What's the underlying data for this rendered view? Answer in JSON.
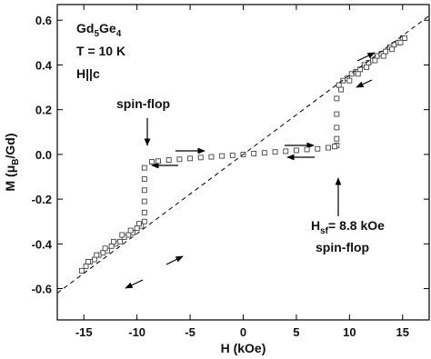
{
  "chart_data": {
    "type": "scatter",
    "xlabel": "H (kOe)",
    "ylabel": [
      "M (μ",
      "B",
      "/Gd)"
    ],
    "xlim": [
      -17.5,
      17.5
    ],
    "ylim": [
      -0.74,
      0.67
    ],
    "xticks": [
      -15,
      -10,
      -5,
      0,
      5,
      10,
      15
    ],
    "yticks": [
      0.6,
      0.4,
      0.2,
      {
        "value": 0,
        "label": "0.0"
      },
      -0.2,
      -0.4,
      -0.6
    ],
    "series": [
      {
        "type": "scatter",
        "color": "#444444",
        "marker": "square",
        "x": [
          9.0,
          9.4,
          9.8,
          10.2,
          10.6,
          11.0,
          11.4,
          11.8,
          12.2,
          12.6,
          13.0,
          13.4,
          13.8,
          14.2,
          14.6,
          15.0,
          15.2,
          14.8,
          14.0,
          13.2,
          12.4,
          11.6,
          10.8,
          10.0,
          9.2,
          8.8,
          8.8,
          8.8,
          8.8,
          8.8,
          8.6,
          8.0,
          7.0,
          6.0,
          5.0,
          4.0,
          3.0,
          2.0,
          1.0,
          0,
          -1,
          -2,
          -3,
          -4,
          -5,
          -6,
          -7,
          -8,
          -8.6,
          -9.3,
          -9.3,
          -9.3,
          -9.3,
          -9.3,
          -9.3,
          -9.6,
          -10.0,
          -10.4,
          -10.8,
          -11.2,
          -11.6,
          -12.0,
          -12.4,
          -12.8,
          -13.2,
          -13.6,
          -14.0,
          -14.4,
          -14.8,
          -15.2,
          -14.6,
          -13.8,
          -13.0,
          -12.2,
          -11.4,
          -10.6,
          -9.8
        ],
        "values": [
          0.31,
          0.33,
          0.34,
          0.36,
          0.37,
          0.38,
          0.4,
          0.41,
          0.42,
          0.44,
          0.45,
          0.46,
          0.48,
          0.49,
          0.5,
          0.52,
          0.52,
          0.5,
          0.47,
          0.44,
          0.42,
          0.39,
          0.36,
          0.33,
          0.29,
          0.25,
          0.18,
          0.12,
          0.07,
          0.04,
          0.035,
          0.03,
          0.025,
          0.022,
          0.018,
          0.014,
          0.011,
          0.007,
          0.004,
          0,
          -0.004,
          -0.007,
          -0.011,
          -0.014,
          -0.018,
          -0.022,
          -0.025,
          -0.03,
          -0.033,
          -0.06,
          -0.11,
          -0.16,
          -0.21,
          -0.26,
          -0.3,
          -0.32,
          -0.33,
          -0.35,
          -0.36,
          -0.37,
          -0.39,
          -0.4,
          -0.41,
          -0.43,
          -0.44,
          -0.45,
          -0.47,
          -0.48,
          -0.5,
          -0.52,
          -0.48,
          -0.45,
          -0.42,
          -0.39,
          -0.36,
          -0.34,
          -0.31
        ]
      },
      {
        "type": "line",
        "color": "#000000",
        "dashed": true,
        "x": [
          -17.5,
          17.5
        ],
        "values": [
          -0.62,
          0.62
        ]
      }
    ],
    "annotations": [
      {
        "text": [
          "Gd",
          "5",
          "Ge",
          "4"
        ]
      },
      {
        "text": [
          "T = 10 K"
        ]
      },
      {
        "text": [
          "H||c"
        ]
      },
      {
        "text": [
          "spin-flop"
        ]
      },
      {
        "text": [
          "H",
          "sf",
          "= 8.8 kOe"
        ]
      },
      {
        "text": [
          "spin-flop"
        ]
      }
    ]
  }
}
